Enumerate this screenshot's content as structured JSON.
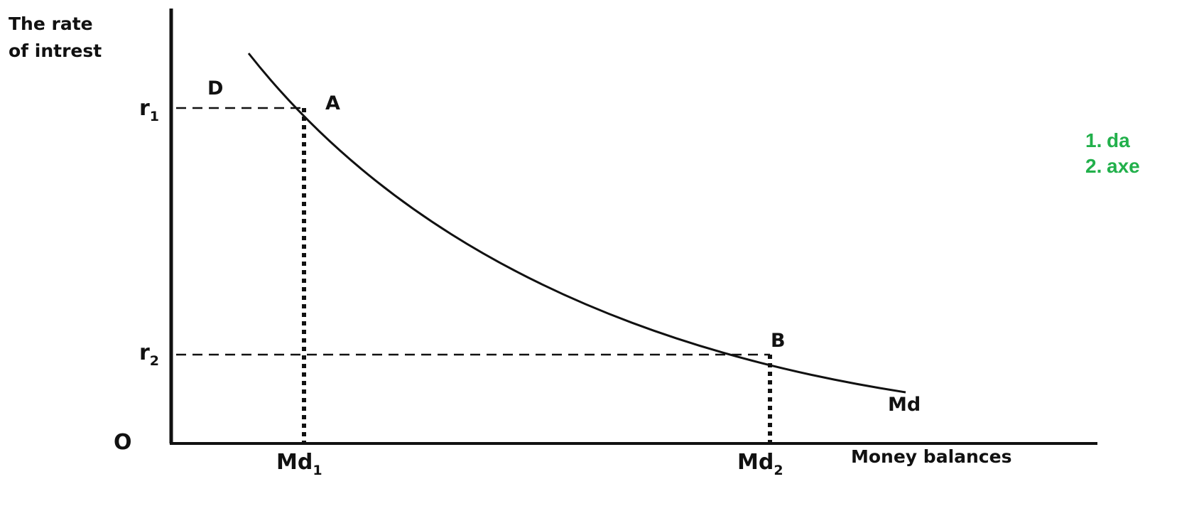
{
  "axes": {
    "y_title_line1": "The rate",
    "y_title_line2": "of intrest",
    "x_title": "Money balances",
    "origin": "O"
  },
  "ticks": {
    "r1_base": "r",
    "r1_sub": "1",
    "r2_base": "r",
    "r2_sub": "2",
    "md1_base": "Md",
    "md1_sub": "1",
    "md2_base": "Md",
    "md2_sub": "2"
  },
  "points": {
    "d": "D",
    "a": "A",
    "b": "B",
    "curve": "Md"
  },
  "notes": [
    {
      "num": "1.",
      "text": "da"
    },
    {
      "num": "2.",
      "text": "axe"
    }
  ],
  "colors": {
    "ink": "#111111",
    "note_green": "#22b04b"
  }
}
